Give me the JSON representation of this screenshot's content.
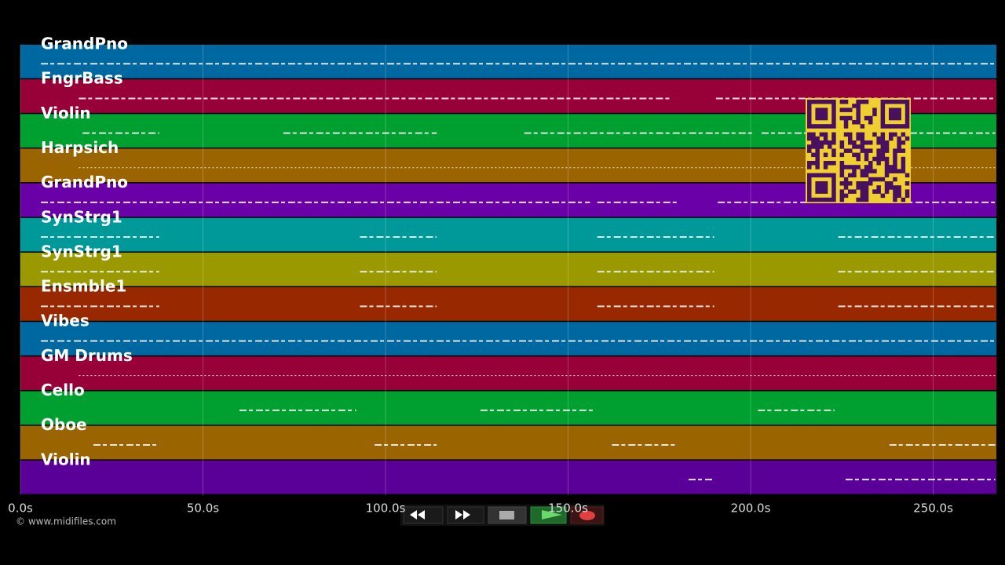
{
  "timeline": {
    "xlim": [
      0,
      267.3
    ],
    "xticks": [
      {
        "value": 0,
        "label": "0.0s"
      },
      {
        "value": 50,
        "label": "50.0s"
      },
      {
        "value": 100,
        "label": "100.0s"
      },
      {
        "value": 150,
        "label": "150.0s"
      },
      {
        "value": 200,
        "label": "200.0s"
      },
      {
        "value": 250,
        "label": "250.0s"
      }
    ],
    "tracks": [
      {
        "name": "GrandPno",
        "color": "#0068a0",
        "segments": [
          [
            5.6,
            267.3
          ]
        ]
      },
      {
        "name": "FngrBass",
        "color": "#980038",
        "segments": [
          [
            16,
            178
          ],
          [
            190.5,
            267
          ]
        ]
      },
      {
        "name": "Violin",
        "color": "#00a030",
        "segments": [
          [
            17,
            38
          ],
          [
            72,
            114
          ],
          [
            138,
            201
          ],
          [
            203,
            267
          ]
        ]
      },
      {
        "name": "Harpsich",
        "color": "#9a6400",
        "segments": [
          [
            16,
            267
          ]
        ]
      },
      {
        "name": "GrandPno",
        "color": "#6a00a8",
        "segments": [
          [
            5.6,
            156
          ],
          [
            158,
            180
          ],
          [
            191,
            267
          ]
        ]
      },
      {
        "name": "SynStrg1",
        "color": "#00999a",
        "segments": [
          [
            5.6,
            38
          ],
          [
            93,
            114
          ],
          [
            158,
            190
          ],
          [
            224,
            267
          ]
        ]
      },
      {
        "name": "SynStrg1",
        "color": "#9a9a00",
        "segments": [
          [
            5.6,
            38
          ],
          [
            93,
            114
          ],
          [
            158,
            190
          ],
          [
            224,
            267
          ]
        ]
      },
      {
        "name": "Ensmble1",
        "color": "#982800",
        "segments": [
          [
            5.6,
            38
          ],
          [
            93,
            114
          ],
          [
            158,
            190
          ],
          [
            224,
            267
          ]
        ]
      },
      {
        "name": "Vibes",
        "color": "#0068a0",
        "segments": [
          [
            5.6,
            267.3
          ]
        ]
      },
      {
        "name": "GM Drums",
        "color": "#980038",
        "segments": [
          [
            16,
            267
          ]
        ]
      },
      {
        "name": "Cello",
        "color": "#00a030",
        "segments": [
          [
            60,
            92
          ],
          [
            126,
            157
          ],
          [
            202,
            223
          ]
        ]
      },
      {
        "name": "Oboe",
        "color": "#9a6400",
        "segments": [
          [
            20,
            38
          ],
          [
            97,
            114
          ],
          [
            162,
            180
          ],
          [
            238,
            267
          ]
        ]
      },
      {
        "name": "Violin",
        "color": "#5a0098",
        "segments": [
          [
            183,
            190
          ],
          [
            226,
            267
          ]
        ]
      }
    ]
  },
  "footer": {
    "copyright": "© www.midifiles.com"
  }
}
